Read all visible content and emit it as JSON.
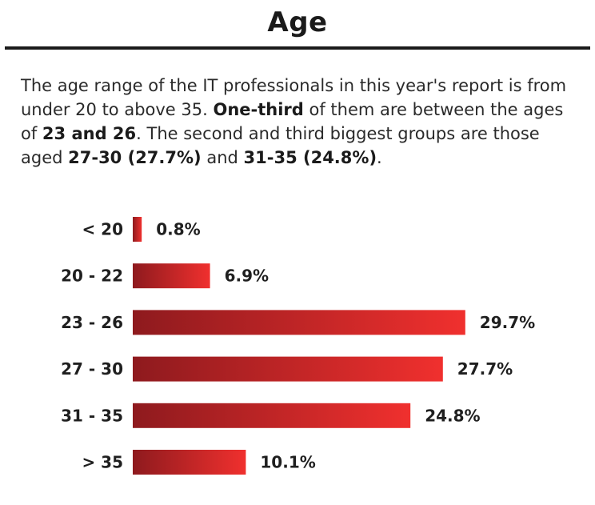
{
  "title": "Age",
  "intro": {
    "t1": "The age range of the IT professionals in this year's report is from under 20 to above 35. ",
    "b1": "One-third",
    "t2": " of them are between the ages of ",
    "b2": "23 and 26",
    "t3": ". The second and third biggest groups are those aged ",
    "b3": "27-30 (27.7%)",
    "t4": " and ",
    "b4": "31-35 (24.8%)",
    "t5": "."
  },
  "colors": {
    "bar_start": "#8e1a1e",
    "bar_end": "#f0302e"
  },
  "chart_data": {
    "type": "bar",
    "orientation": "horizontal",
    "categories": [
      "< 20",
      "20 - 22",
      "23 - 26",
      "27 - 30",
      "31 - 35",
      "> 35"
    ],
    "values": [
      0.8,
      6.9,
      29.7,
      27.7,
      24.8,
      10.1
    ],
    "value_labels": [
      "0.8%",
      "6.9%",
      "29.7%",
      "27.7%",
      "24.8%",
      "10.1%"
    ],
    "unit": "%",
    "grid": false,
    "legend": "none"
  }
}
